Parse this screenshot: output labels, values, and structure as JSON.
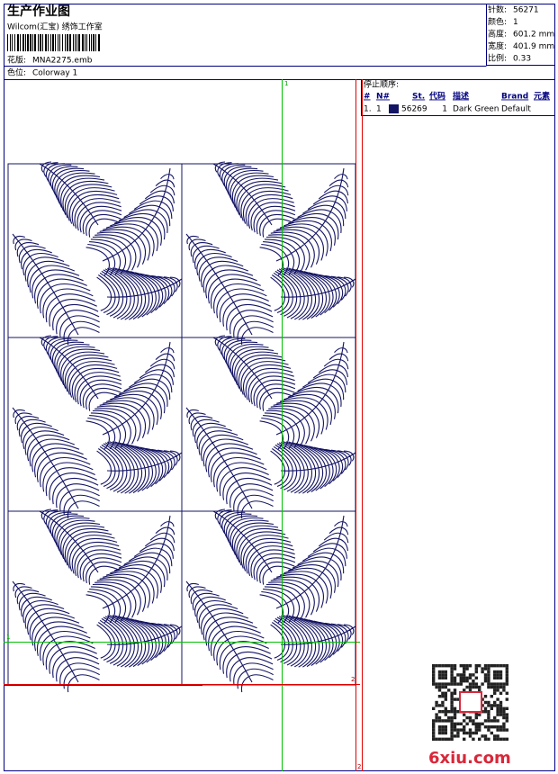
{
  "header": {
    "title": "生产作业图",
    "studio": "Wilcom(汇宝) 绣饰工作室",
    "design_label": "花版:",
    "design": "MNA2275.emb",
    "colorway_label": "色位:",
    "colorway": "Colorway 1"
  },
  "info": [
    {
      "label": "针数:",
      "value": "56271"
    },
    {
      "label": "颜色:",
      "value": "1"
    },
    {
      "label": "高度:",
      "value": "601.2 mm"
    },
    {
      "label": "宽度:",
      "value": "401.9 mm"
    },
    {
      "label": "比例:",
      "value": "0.33"
    }
  ],
  "stop_sequence": {
    "title": "停止顺序:",
    "headers": [
      "#",
      "N#",
      "St.",
      "代码",
      "描述",
      "Brand",
      "元素"
    ],
    "rows": [
      [
        "1.",
        "1",
        "56269",
        "1",
        "Dark Green",
        "Default"
      ]
    ]
  },
  "guides": {
    "green": "1",
    "red": "2"
  },
  "watermark": "6xiu.com"
}
